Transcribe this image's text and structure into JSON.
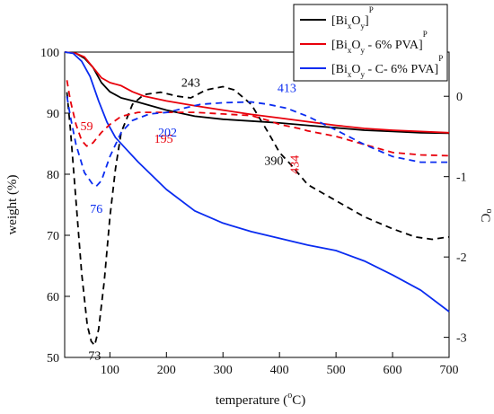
{
  "chart_data": {
    "type": "line",
    "xlabel": "temperature (°C)",
    "ylabel_left": "weight (%)",
    "ylabel_right": "°C",
    "xlim": [
      20,
      700
    ],
    "ylim_left": [
      50,
      100
    ],
    "ylim_right": [
      -3.25,
      0.55
    ],
    "x_ticks": [
      100,
      200,
      300,
      400,
      500,
      600,
      700
    ],
    "y_ticks_left": [
      50,
      60,
      70,
      80,
      90,
      100
    ],
    "y_ticks_right": [
      0,
      -1,
      -2,
      -3
    ],
    "colors": {
      "black": "#000000",
      "red": "#e8000b",
      "blue": "#0a2cf0"
    },
    "legend_position": "top-right",
    "legend": [
      {
        "label": "[Bi",
        "sub1": "x",
        "mid": "O",
        "sub2": "y",
        "end": "]",
        "sup": "P",
        "color": "#000000"
      },
      {
        "label": "[Bi",
        "sub1": "x",
        "mid": "O",
        "sub2": "y",
        "end": " - 6% PVA]",
        "sup": "P",
        "color": "#e8000b"
      },
      {
        "label": "[Bi",
        "sub1": "x",
        "mid": "O",
        "sub2": "y",
        "end": " - C- 6% PVA]",
        "sup": "P",
        "color": "#0a2cf0"
      }
    ],
    "series": [
      {
        "axis": "left",
        "style": "solid",
        "color": "#000000",
        "points": [
          [
            20,
            100
          ],
          [
            40,
            99.8
          ],
          [
            55,
            99
          ],
          [
            70,
            97.5
          ],
          [
            85,
            95
          ],
          [
            100,
            93.5
          ],
          [
            120,
            92.5
          ],
          [
            150,
            91.8
          ],
          [
            200,
            90.5
          ],
          [
            250,
            89.5
          ],
          [
            300,
            89
          ],
          [
            350,
            88.7
          ],
          [
            400,
            88.4
          ],
          [
            450,
            88
          ],
          [
            500,
            87.6
          ],
          [
            550,
            87.2
          ],
          [
            600,
            87
          ],
          [
            650,
            86.8
          ],
          [
            700,
            86.7
          ]
        ]
      },
      {
        "axis": "left",
        "style": "solid",
        "color": "#e8000b",
        "points": [
          [
            20,
            100
          ],
          [
            40,
            99.8
          ],
          [
            55,
            99.2
          ],
          [
            70,
            97.5
          ],
          [
            85,
            95.8
          ],
          [
            100,
            95
          ],
          [
            120,
            94.5
          ],
          [
            140,
            93.5
          ],
          [
            160,
            92.8
          ],
          [
            200,
            92
          ],
          [
            250,
            91.2
          ],
          [
            300,
            90.5
          ],
          [
            350,
            89.8
          ],
          [
            400,
            89.2
          ],
          [
            450,
            88.6
          ],
          [
            500,
            88
          ],
          [
            550,
            87.5
          ],
          [
            600,
            87.2
          ],
          [
            650,
            87
          ],
          [
            700,
            86.8
          ]
        ]
      },
      {
        "axis": "left",
        "style": "solid",
        "color": "#0a2cf0",
        "points": [
          [
            20,
            100
          ],
          [
            35,
            99.8
          ],
          [
            50,
            98.5
          ],
          [
            65,
            96
          ],
          [
            80,
            92
          ],
          [
            95,
            88.5
          ],
          [
            110,
            86
          ],
          [
            130,
            84
          ],
          [
            150,
            82
          ],
          [
            200,
            77.5
          ],
          [
            250,
            74
          ],
          [
            300,
            72
          ],
          [
            350,
            70.6
          ],
          [
            400,
            69.5
          ],
          [
            450,
            68.4
          ],
          [
            500,
            67.5
          ],
          [
            550,
            65.8
          ],
          [
            600,
            63.5
          ],
          [
            650,
            61
          ],
          [
            700,
            57.5
          ]
        ]
      },
      {
        "axis": "right",
        "style": "dashed",
        "color": "#000000",
        "points": [
          [
            24,
            0.05
          ],
          [
            30,
            -0.4
          ],
          [
            40,
            -1.3
          ],
          [
            50,
            -2.2
          ],
          [
            60,
            -2.85
          ],
          [
            67,
            -3.05
          ],
          [
            73,
            -3.1
          ],
          [
            80,
            -2.9
          ],
          [
            90,
            -2.3
          ],
          [
            100,
            -1.5
          ],
          [
            110,
            -0.9
          ],
          [
            120,
            -0.45
          ],
          [
            140,
            -0.1
          ],
          [
            160,
            0.02
          ],
          [
            190,
            0.05
          ],
          [
            220,
            0.0
          ],
          [
            243,
            -0.02
          ],
          [
            270,
            0.08
          ],
          [
            300,
            0.12
          ],
          [
            320,
            0.08
          ],
          [
            350,
            -0.1
          ],
          [
            380,
            -0.45
          ],
          [
            400,
            -0.7
          ],
          [
            420,
            -0.85
          ],
          [
            450,
            -1.1
          ],
          [
            500,
            -1.3
          ],
          [
            550,
            -1.5
          ],
          [
            600,
            -1.65
          ],
          [
            640,
            -1.75
          ],
          [
            670,
            -1.78
          ],
          [
            700,
            -1.75
          ]
        ]
      },
      {
        "axis": "right",
        "style": "dashed",
        "color": "#e8000b",
        "points": [
          [
            24,
            0.2
          ],
          [
            30,
            -0.05
          ],
          [
            40,
            -0.35
          ],
          [
            50,
            -0.55
          ],
          [
            59,
            -0.62
          ],
          [
            70,
            -0.58
          ],
          [
            85,
            -0.45
          ],
          [
            100,
            -0.35
          ],
          [
            120,
            -0.25
          ],
          [
            150,
            -0.2
          ],
          [
            200,
            -0.2
          ],
          [
            250,
            -0.2
          ],
          [
            300,
            -0.22
          ],
          [
            350,
            -0.24
          ],
          [
            380,
            -0.3
          ],
          [
            400,
            -0.35
          ],
          [
            434,
            -0.4
          ],
          [
            450,
            -0.43
          ],
          [
            500,
            -0.5
          ],
          [
            550,
            -0.6
          ],
          [
            600,
            -0.7
          ],
          [
            650,
            -0.73
          ],
          [
            700,
            -0.74
          ]
        ]
      },
      {
        "axis": "right",
        "style": "dashed",
        "color": "#0a2cf0",
        "points": [
          [
            24,
            0.0
          ],
          [
            30,
            -0.25
          ],
          [
            40,
            -0.6
          ],
          [
            55,
            -0.95
          ],
          [
            70,
            -1.1
          ],
          [
            76,
            -1.12
          ],
          [
            85,
            -1.05
          ],
          [
            100,
            -0.75
          ],
          [
            120,
            -0.45
          ],
          [
            140,
            -0.3
          ],
          [
            170,
            -0.22
          ],
          [
            202,
            -0.2
          ],
          [
            230,
            -0.15
          ],
          [
            260,
            -0.1
          ],
          [
            300,
            -0.08
          ],
          [
            350,
            -0.07
          ],
          [
            380,
            -0.1
          ],
          [
            413,
            -0.15
          ],
          [
            450,
            -0.25
          ],
          [
            500,
            -0.42
          ],
          [
            550,
            -0.6
          ],
          [
            600,
            -0.75
          ],
          [
            650,
            -0.82
          ],
          [
            700,
            -0.82
          ]
        ]
      }
    ],
    "annotations": [
      {
        "text": "73",
        "x": 73,
        "y_right": -3.28,
        "color": "#000000"
      },
      {
        "text": "59",
        "x": 59,
        "y_right": -0.42,
        "color": "#e8000b"
      },
      {
        "text": "76",
        "x": 76,
        "y_right": -1.45,
        "color": "#0a2cf0"
      },
      {
        "text": "195",
        "x": 195,
        "y_right": -0.58,
        "color": "#e8000b"
      },
      {
        "text": "202",
        "x": 202,
        "y_right": -0.5,
        "color": "#0a2cf0"
      },
      {
        "text": "243",
        "x": 243,
        "y_right": 0.12,
        "color": "#000000"
      },
      {
        "text": "413",
        "x": 413,
        "y_right": 0.05,
        "color": "#0a2cf0"
      },
      {
        "text": "390",
        "x": 390,
        "y_right": -0.85,
        "color": "#000000"
      },
      {
        "text": "434",
        "x": 434,
        "y_right": -0.85,
        "color": "#e8000b",
        "rotate": true
      }
    ]
  }
}
